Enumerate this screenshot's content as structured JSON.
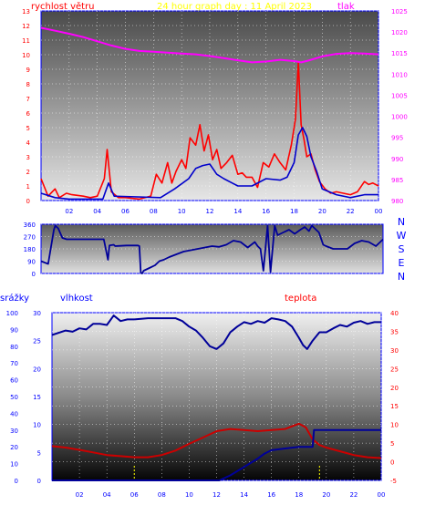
{
  "chart_data": [
    {
      "type": "line",
      "title": "24 hour graph day : 11 April 2023",
      "ylabel": "rychlost větru",
      "y2label": "tlak",
      "x_ticks": [
        "02",
        "04",
        "06",
        "08",
        "10",
        "12",
        "14",
        "16",
        "18",
        "20",
        "22",
        "00"
      ],
      "y_ticks": [
        0,
        1,
        2,
        3,
        4,
        5,
        6,
        7,
        8,
        9,
        10,
        11,
        12,
        13
      ],
      "y2_ticks": [
        980,
        985,
        990,
        995,
        1000,
        1005,
        1010,
        1015,
        1020,
        1025
      ],
      "ylim": [
        0,
        13
      ],
      "y2lim": [
        980,
        1025
      ],
      "xlim": [
        0,
        24
      ],
      "series": [
        {
          "axis": "left",
          "color": "#ff0000",
          "x": [
            0.0,
            0.5,
            1.0,
            1.3,
            1.8,
            2.2,
            3.0,
            3.5,
            4.0,
            4.5,
            4.7,
            5.0,
            5.5,
            6.0,
            7.0,
            7.8,
            8.2,
            8.6,
            9.0,
            9.3,
            9.6,
            10.0,
            10.3,
            10.6,
            11.0,
            11.3,
            11.6,
            11.9,
            12.2,
            12.5,
            12.8,
            13.2,
            13.6,
            14.0,
            14.3,
            14.6,
            15.0,
            15.4,
            15.8,
            16.2,
            16.6,
            17.0,
            17.4,
            17.8,
            18.1,
            18.3,
            18.5,
            18.7,
            18.9,
            19.2,
            19.5,
            19.8,
            20.2,
            20.6,
            21.0,
            21.5,
            22.0,
            22.5,
            23.0,
            23.3,
            23.6,
            24.0
          ],
          "y": [
            1.5,
            0.3,
            0.8,
            0.2,
            0.5,
            0.4,
            0.3,
            0.2,
            0.3,
            1.5,
            3.5,
            0.6,
            0.2,
            0.2,
            0.1,
            0.3,
            1.8,
            1.2,
            2.6,
            1.2,
            2.0,
            2.8,
            2.2,
            4.3,
            3.8,
            5.2,
            3.4,
            4.5,
            2.8,
            3.5,
            2.2,
            2.6,
            3.1,
            1.8,
            1.9,
            1.6,
            1.6,
            0.9,
            2.6,
            2.3,
            3.2,
            2.6,
            2.1,
            3.8,
            5.6,
            9.5,
            5.2,
            4.2,
            3.0,
            3.2,
            2.1,
            1.3,
            0.8,
            0.5,
            0.6,
            0.5,
            0.4,
            0.6,
            1.3,
            1.1,
            1.2,
            1.0
          ]
        },
        {
          "axis": "left",
          "color": "#0000cc",
          "x": [
            0.0,
            1.0,
            2.0,
            4.4,
            4.8,
            5.2,
            8.5,
            9.5,
            10.5,
            11.0,
            11.5,
            12.0,
            12.5,
            13.0,
            14.0,
            15.0,
            16.0,
            17.0,
            17.5,
            18.0,
            18.3,
            18.6,
            18.9,
            19.2,
            19.6,
            20.0,
            21.0,
            22.0,
            23.0,
            24.0
          ],
          "y": [
            0.5,
            0.2,
            0.1,
            0.1,
            1.2,
            0.3,
            0.2,
            0.8,
            1.5,
            2.2,
            2.4,
            2.5,
            1.8,
            1.5,
            1.0,
            1.0,
            1.5,
            1.4,
            1.6,
            2.6,
            4.5,
            5.0,
            4.4,
            3.0,
            2.0,
            0.8,
            0.4,
            0.2,
            0.4,
            0.4
          ]
        },
        {
          "axis": "right",
          "color": "#ff00ff",
          "x": [
            0,
            1,
            2,
            3,
            4,
            5,
            6,
            7,
            8,
            9,
            10,
            11,
            12,
            13,
            14,
            15,
            16,
            17,
            18,
            18.5,
            19,
            20,
            21,
            22,
            23,
            24
          ],
          "y": [
            1021,
            1020.3,
            1019.6,
            1018.8,
            1017.8,
            1016.8,
            1016.0,
            1015.5,
            1015.3,
            1015.1,
            1014.9,
            1014.7,
            1014.3,
            1013.8,
            1013.3,
            1012.8,
            1013.0,
            1013.4,
            1013.1,
            1012.8,
            1013.2,
            1014.2,
            1014.8,
            1015.0,
            1014.9,
            1014.7
          ]
        }
      ]
    },
    {
      "type": "line",
      "title": "",
      "y_ticks": [
        0,
        90,
        180,
        270,
        360
      ],
      "ylim": [
        0,
        360
      ],
      "xlim": [
        0,
        24
      ],
      "right_labels": [
        "N",
        "W",
        "S",
        "E",
        "N"
      ],
      "series": [
        {
          "color": "#000099",
          "x": [
            0.0,
            0.5,
            0.9,
            1.0,
            1.2,
            1.5,
            1.8,
            2.0,
            4.4,
            4.6,
            4.7,
            4.8,
            5.1,
            5.2,
            6.0,
            6.8,
            6.9,
            7.0,
            7.1,
            7.2,
            7.6,
            8.0,
            8.3,
            8.6,
            9.0,
            9.5,
            10.0,
            10.5,
            11.0,
            11.5,
            12.0,
            12.5,
            13.0,
            13.5,
            14.0,
            14.5,
            15.0,
            15.2,
            15.4,
            15.6,
            15.9,
            16.1,
            16.4,
            16.6,
            17.0,
            17.4,
            17.8,
            18.2,
            18.5,
            18.8,
            19.0,
            19.2,
            19.5,
            19.8,
            20.0,
            20.5,
            21.0,
            21.5,
            22.0,
            22.5,
            23.0,
            23.5,
            24.0
          ],
          "y": [
            90,
            70,
            320,
            350,
            330,
            260,
            250,
            250,
            250,
            150,
            100,
            205,
            210,
            200,
            205,
            205,
            200,
            5,
            0,
            20,
            40,
            60,
            90,
            100,
            120,
            140,
            160,
            170,
            180,
            190,
            200,
            195,
            210,
            240,
            230,
            190,
            230,
            200,
            180,
            20,
            350,
            10,
            350,
            280,
            300,
            320,
            290,
            320,
            340,
            310,
            350,
            330,
            300,
            210,
            200,
            180,
            180,
            180,
            220,
            240,
            230,
            200,
            250
          ]
        }
      ]
    },
    {
      "type": "line",
      "title": "",
      "labels": {
        "rain": "srážky",
        "humidity": "vlhkost",
        "temperature": "teplota"
      },
      "x_ticks": [
        "02",
        "04",
        "06",
        "08",
        "10",
        "12",
        "14",
        "16",
        "18",
        "20",
        "22",
        "00"
      ],
      "y_ticks_rain": [
        0,
        10,
        20,
        30,
        40,
        50,
        60,
        70,
        80,
        90,
        100
      ],
      "y_ticks_humidity": [
        0,
        5,
        10,
        15,
        20,
        25,
        30
      ],
      "y_ticks_temperature": [
        -5,
        0,
        5,
        10,
        15,
        20,
        25,
        30,
        35,
        40
      ],
      "ylim_rain": [
        0,
        100
      ],
      "ylim_humidity": [
        0,
        30
      ],
      "ylim_temperature": [
        -5,
        40
      ],
      "xlim": [
        0,
        24
      ],
      "series": [
        {
          "name_key": "humidity",
          "color": "#000099",
          "axis": "humidity",
          "x": [
            0,
            1,
            1.5,
            2,
            2.5,
            3,
            3.5,
            4,
            4.5,
            5,
            5.5,
            6,
            7,
            8,
            9,
            9.5,
            10,
            10.5,
            11,
            11.5,
            12,
            12.5,
            13,
            13.5,
            14,
            14.5,
            15,
            15.5,
            16,
            16.5,
            17,
            17.5,
            18,
            18.3,
            18.6,
            19,
            19.5,
            20,
            20.5,
            21,
            21.5,
            22,
            22.5,
            23,
            23.5,
            24
          ],
          "y": [
            26.0,
            26.8,
            26.6,
            27.2,
            27.0,
            28.0,
            28.0,
            27.8,
            29.5,
            28.5,
            28.8,
            28.8,
            29.0,
            29.0,
            29.0,
            28.5,
            27.5,
            26.8,
            25.5,
            24.0,
            23.5,
            24.5,
            26.5,
            27.5,
            28.3,
            28.0,
            28.5,
            28.2,
            29.0,
            28.8,
            28.5,
            27.5,
            25.5,
            24.2,
            23.5,
            25.0,
            26.5,
            26.5,
            27.2,
            27.8,
            27.5,
            28.2,
            28.5,
            28.0,
            28.3,
            28.3
          ]
        },
        {
          "name_key": "temperature",
          "color": "#cc0000",
          "axis": "temperature",
          "x": [
            0,
            1,
            2,
            3,
            4,
            5,
            6,
            7,
            8,
            9,
            10,
            11,
            12,
            13,
            14,
            15,
            16,
            17,
            17.5,
            18,
            18.5,
            19,
            19.5,
            20,
            21,
            22,
            23,
            24
          ],
          "y": [
            4.2,
            3.8,
            3.2,
            2.5,
            1.8,
            1.5,
            1.2,
            1.2,
            1.8,
            3.0,
            4.8,
            6.5,
            8.2,
            8.8,
            8.5,
            8.2,
            8.5,
            8.8,
            9.5,
            10.2,
            9.2,
            6.0,
            4.5,
            3.8,
            2.8,
            1.8,
            1.2,
            1.0
          ]
        },
        {
          "name_key": "rain",
          "color": "#000099",
          "axis": "rain",
          "x": [
            0,
            12.2,
            13,
            14,
            15,
            15.5,
            16,
            17,
            18,
            19,
            19.1,
            24
          ],
          "y": [
            0,
            0,
            3,
            8,
            13,
            16,
            18,
            19,
            20,
            20,
            30,
            30
          ]
        }
      ]
    }
  ],
  "colors": {
    "panel_border": "#0000ff",
    "grid": "#ffffff",
    "title": "#ffff00",
    "wind_label": "#ff0000",
    "pressure_label": "#ff00ff",
    "axis_blue": "#0000ff",
    "axis_red": "#ff0000",
    "marker_yellow": "#ffff00"
  }
}
